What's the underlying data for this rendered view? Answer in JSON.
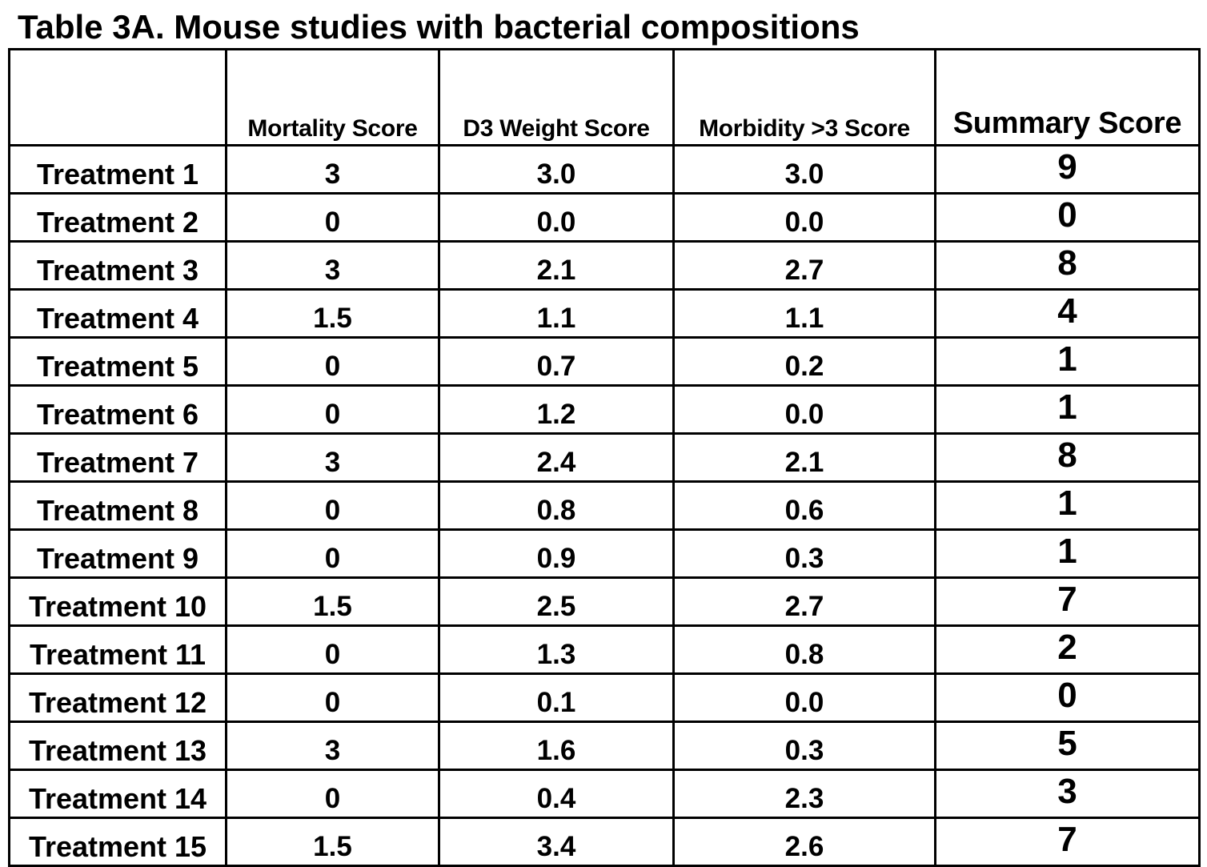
{
  "document": {
    "title": "Table 3A.  Mouse studies with bacterial compositions"
  },
  "table": {
    "headers": [
      "",
      "Mortality Score",
      "D3 Weight Score",
      "Morbidity >3 Score",
      "Summary Score"
    ],
    "rows": [
      [
        "Treatment 1",
        "3",
        "3.0",
        "3.0",
        "9"
      ],
      [
        "Treatment 2",
        "0",
        "0.0",
        "0.0",
        "0"
      ],
      [
        "Treatment 3",
        "3",
        "2.1",
        "2.7",
        "8"
      ],
      [
        "Treatment 4",
        "1.5",
        "1.1",
        "1.1",
        "4"
      ],
      [
        "Treatment 5",
        "0",
        "0.7",
        "0.2",
        "1"
      ],
      [
        "Treatment 6",
        "0",
        "1.2",
        "0.0",
        "1"
      ],
      [
        "Treatment 7",
        "3",
        "2.4",
        "2.1",
        "8"
      ],
      [
        "Treatment 8",
        "0",
        "0.8",
        "0.6",
        "1"
      ],
      [
        "Treatment 9",
        "0",
        "0.9",
        "0.3",
        "1"
      ],
      [
        "Treatment 10",
        "1.5",
        "2.5",
        "2.7",
        "7"
      ],
      [
        "Treatment 11",
        "0",
        "1.3",
        "0.8",
        "2"
      ],
      [
        "Treatment 12",
        "0",
        "0.1",
        "0.0",
        "0"
      ],
      [
        "Treatment 13",
        "3",
        "1.6",
        "0.3",
        "5"
      ],
      [
        "Treatment 14",
        "0",
        "0.4",
        "2.3",
        "3"
      ],
      [
        "Treatment 15",
        "1.5",
        "3.4",
        "2.6",
        "7"
      ]
    ]
  }
}
